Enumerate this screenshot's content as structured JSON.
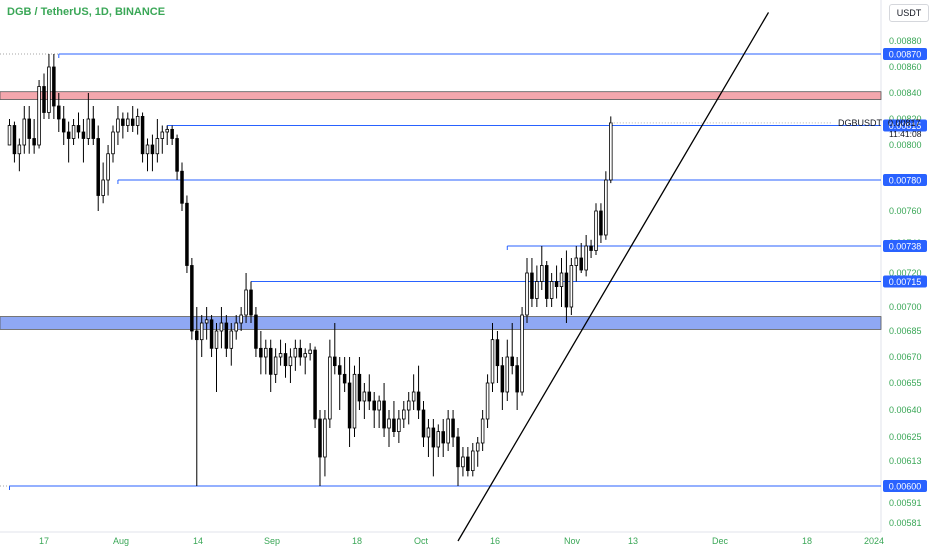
{
  "header": {
    "title": "DGB / TetherUS, 1D, BINANCE",
    "currency": "USDT"
  },
  "colors": {
    "up_candle_fill": "#ffffff",
    "down_candle_fill": "#000000",
    "level_line": "#2962ff",
    "label_bg": "#2962ff",
    "label_text": "#ffffff",
    "axis_text": "#3aa757",
    "red_zone": "#f4a7ad",
    "blue_zone": "#8fa8f4",
    "trendline": "#000000"
  },
  "chart_data": {
    "type": "candlestick",
    "title": "DGB / TetherUS, 1D, BINANCE",
    "symbol": "DGBUSDT",
    "last_price": "0.00817",
    "countdown": "11:41:08",
    "y_ticks": [
      "0.00880",
      "0.00860",
      "0.00840",
      "0.00820",
      "0.00800",
      "0.00780",
      "0.00760",
      "0.00740",
      "0.00720",
      "0.00700",
      "0.00685",
      "0.00670",
      "0.00655",
      "0.00640",
      "0.00625",
      "0.00613",
      "0.00600",
      "0.00591",
      "0.00581"
    ],
    "x_ticks": [
      "17",
      "Aug",
      "14",
      "Sep",
      "18",
      "Oct",
      "16",
      "Nov",
      "13",
      "Dec",
      "18",
      "2024"
    ],
    "price_labels": [
      "0.00870",
      "0.00815",
      "0.00780",
      "0.00738",
      "0.00715",
      "0.00600"
    ],
    "horizontal_levels": [
      {
        "price": 0.0087,
        "from_date": "Jul 20",
        "color": "#2962ff"
      },
      {
        "price": 0.00815,
        "from_date": "Aug 11",
        "color": "#2962ff"
      },
      {
        "price": 0.0078,
        "from_date": "Aug 1",
        "color": "#2962ff"
      },
      {
        "price": 0.00738,
        "from_date": "Oct 19",
        "color": "#2962ff"
      },
      {
        "price": 0.00715,
        "from_date": "Aug 28",
        "color": "#2962ff"
      },
      {
        "price": 0.006,
        "from_date": "Jul 10",
        "color": "#2962ff"
      }
    ],
    "zones": [
      {
        "from": 0.00835,
        "to": 0.00841,
        "color": "#f4a7ad"
      },
      {
        "from": 0.00686,
        "to": 0.00694,
        "color": "#8fa8f4"
      }
    ],
    "trendline": {
      "from": [
        "Oct 9",
        0.00572
      ],
      "to": [
        "Dec 11",
        0.00902
      ]
    },
    "candles": [
      [
        "Jul 10",
        0.008,
        0.0082,
        0.008,
        0.00815
      ],
      [
        "Jul 11",
        0.00815,
        0.00818,
        0.0079,
        0.00795
      ],
      [
        "Jul 12",
        0.00795,
        0.00805,
        0.00785,
        0.008
      ],
      [
        "Jul 13",
        0.008,
        0.0083,
        0.00795,
        0.0082
      ],
      [
        "Jul 14",
        0.0082,
        0.0083,
        0.00795,
        0.00805
      ],
      [
        "Jul 15",
        0.00805,
        0.0082,
        0.00795,
        0.008
      ],
      [
        "Jul 16",
        0.008,
        0.0085,
        0.00798,
        0.00845
      ],
      [
        "Jul 17",
        0.00845,
        0.00855,
        0.0082,
        0.00825
      ],
      [
        "Jul 18",
        0.00825,
        0.0087,
        0.0082,
        0.0086
      ],
      [
        "Jul 19",
        0.0086,
        0.0087,
        0.0082,
        0.0083
      ],
      [
        "Jul 20",
        0.0083,
        0.0084,
        0.0081,
        0.0082
      ],
      [
        "Jul 21",
        0.0082,
        0.0083,
        0.008,
        0.0081
      ],
      [
        "Jul 22",
        0.0081,
        0.00818,
        0.0079,
        0.00805
      ],
      [
        "Jul 23",
        0.00805,
        0.0082,
        0.008,
        0.00815
      ],
      [
        "Jul 24",
        0.00815,
        0.00825,
        0.00805,
        0.0081
      ],
      [
        "Jul 25",
        0.0081,
        0.0082,
        0.0079,
        0.00805
      ],
      [
        "Jul 26",
        0.00805,
        0.0084,
        0.008,
        0.0082
      ],
      [
        "Jul 27",
        0.0082,
        0.0083,
        0.008,
        0.00805
      ],
      [
        "Jul 28",
        0.00805,
        0.00815,
        0.0076,
        0.0077
      ],
      [
        "Jul 29",
        0.0077,
        0.0079,
        0.00765,
        0.0078
      ],
      [
        "Jul 30",
        0.0078,
        0.008,
        0.0077,
        0.00795
      ],
      [
        "Jul 31",
        0.00795,
        0.00815,
        0.0079,
        0.0081
      ],
      [
        "Aug 1",
        0.0081,
        0.0083,
        0.008,
        0.0082
      ],
      [
        "Aug 2",
        0.0082,
        0.00825,
        0.00805,
        0.00815
      ],
      [
        "Aug 3",
        0.00815,
        0.00825,
        0.0081,
        0.0082
      ],
      [
        "Aug 4",
        0.0082,
        0.0083,
        0.0081,
        0.00815
      ],
      [
        "Aug 5",
        0.00815,
        0.00828,
        0.00808,
        0.00822
      ],
      [
        "Aug 6",
        0.00822,
        0.00825,
        0.0079,
        0.00795
      ],
      [
        "Aug 7",
        0.00795,
        0.00805,
        0.00785,
        0.008
      ],
      [
        "Aug 8",
        0.008,
        0.00808,
        0.00785,
        0.00795
      ],
      [
        "Aug 9",
        0.00795,
        0.0082,
        0.0079,
        0.00805
      ],
      [
        "Aug 10",
        0.00805,
        0.00815,
        0.00795,
        0.0081
      ],
      [
        "Aug 11",
        0.0081,
        0.00815,
        0.008,
        0.00812
      ],
      [
        "Aug 12",
        0.00812,
        0.00815,
        0.008,
        0.00805
      ],
      [
        "Aug 13",
        0.00805,
        0.00808,
        0.0078,
        0.00785
      ],
      [
        "Aug 14",
        0.00785,
        0.0079,
        0.0076,
        0.00765
      ],
      [
        "Aug 15",
        0.00765,
        0.0077,
        0.0072,
        0.00725
      ],
      [
        "Aug 16",
        0.00725,
        0.0073,
        0.0068,
        0.00685
      ],
      [
        "Aug 17",
        0.00685,
        0.007,
        0.006,
        0.0068
      ],
      [
        "Aug 18",
        0.0068,
        0.00695,
        0.0067,
        0.0069
      ],
      [
        "Aug 19",
        0.0069,
        0.007,
        0.0068,
        0.00692
      ],
      [
        "Aug 20",
        0.00692,
        0.00695,
        0.0067,
        0.00675
      ],
      [
        "Aug 21",
        0.00675,
        0.0069,
        0.0065,
        0.00685
      ],
      [
        "Aug 22",
        0.00685,
        0.007,
        0.00675,
        0.0069
      ],
      [
        "Aug 23",
        0.0069,
        0.00695,
        0.0067,
        0.00675
      ],
      [
        "Aug 24",
        0.00675,
        0.0069,
        0.00665,
        0.00685
      ],
      [
        "Aug 25",
        0.00685,
        0.00695,
        0.0068,
        0.0069
      ],
      [
        "Aug 26",
        0.0069,
        0.007,
        0.00685,
        0.00695
      ],
      [
        "Aug 27",
        0.00695,
        0.0072,
        0.0069,
        0.0071
      ],
      [
        "Aug 28",
        0.0071,
        0.00715,
        0.0069,
        0.00695
      ],
      [
        "Aug 29",
        0.00695,
        0.007,
        0.0067,
        0.00675
      ],
      [
        "Aug 30",
        0.00675,
        0.00685,
        0.0066,
        0.0067
      ],
      [
        "Aug 31",
        0.0067,
        0.0068,
        0.0066,
        0.00675
      ],
      [
        "Sep 1",
        0.00675,
        0.0068,
        0.0065,
        0.0066
      ],
      [
        "Sep 2",
        0.0066,
        0.00675,
        0.00655,
        0.0067
      ],
      [
        "Sep 3",
        0.0067,
        0.0068,
        0.00665,
        0.00672
      ],
      [
        "Sep 4",
        0.00672,
        0.00678,
        0.00658,
        0.00665
      ],
      [
        "Sep 5",
        0.00665,
        0.00675,
        0.00655,
        0.0067
      ],
      [
        "Sep 6",
        0.0067,
        0.0068,
        0.00662,
        0.00675
      ],
      [
        "Sep 7",
        0.00675,
        0.0068,
        0.00665,
        0.0067
      ],
      [
        "Sep 8",
        0.0067,
        0.00675,
        0.0066,
        0.00672
      ],
      [
        "Sep 9",
        0.00672,
        0.00678,
        0.00668,
        0.00674
      ],
      [
        "Sep 10",
        0.00674,
        0.00676,
        0.0063,
        0.00635
      ],
      [
        "Sep 11",
        0.00635,
        0.0064,
        0.006,
        0.00615
      ],
      [
        "Sep 12",
        0.00615,
        0.0064,
        0.00605,
        0.00635
      ],
      [
        "Sep 13",
        0.00635,
        0.0068,
        0.0063,
        0.0067
      ],
      [
        "Sep 14",
        0.0067,
        0.0069,
        0.0066,
        0.00665
      ],
      [
        "Sep 15",
        0.00665,
        0.0067,
        0.0064,
        0.0066
      ],
      [
        "Sep 16",
        0.0066,
        0.0067,
        0.0065,
        0.00655
      ],
      [
        "Sep 17",
        0.00655,
        0.0067,
        0.0062,
        0.0063
      ],
      [
        "Sep 18",
        0.0063,
        0.00665,
        0.00625,
        0.0066
      ],
      [
        "Sep 19",
        0.0066,
        0.0067,
        0.0064,
        0.00645
      ],
      [
        "Sep 20",
        0.00645,
        0.00655,
        0.00635,
        0.0065
      ],
      [
        "Sep 21",
        0.0065,
        0.0066,
        0.0064,
        0.00645
      ],
      [
        "Sep 22",
        0.00645,
        0.0065,
        0.0063,
        0.0064
      ],
      [
        "Sep 23",
        0.0064,
        0.00648,
        0.0063,
        0.00645
      ],
      [
        "Sep 24",
        0.00645,
        0.00655,
        0.00625,
        0.0063
      ],
      [
        "Sep 25",
        0.0063,
        0.0064,
        0.0062,
        0.00635
      ],
      [
        "Sep 26",
        0.00635,
        0.00645,
        0.00625,
        0.00628
      ],
      [
        "Sep 27",
        0.00628,
        0.0064,
        0.00622,
        0.00635
      ],
      [
        "Sep 28",
        0.00635,
        0.00645,
        0.0063,
        0.0064
      ],
      [
        "Sep 29",
        0.0064,
        0.0065,
        0.00632,
        0.00645
      ],
      [
        "Sep 30",
        0.00645,
        0.0066,
        0.0064,
        0.0065
      ],
      [
        "Oct 1",
        0.0065,
        0.00665,
        0.00635,
        0.0064
      ],
      [
        "Oct 2",
        0.0064,
        0.00645,
        0.0062,
        0.00625
      ],
      [
        "Oct 3",
        0.00625,
        0.00635,
        0.00615,
        0.0063
      ],
      [
        "Oct 4",
        0.0063,
        0.00635,
        0.00605,
        0.0062
      ],
      [
        "Oct 5",
        0.0062,
        0.00632,
        0.00615,
        0.00628
      ],
      [
        "Oct 6",
        0.00628,
        0.00635,
        0.00615,
        0.00622
      ],
      [
        "Oct 7",
        0.00622,
        0.0064,
        0.00618,
        0.00635
      ],
      [
        "Oct 8",
        0.00635,
        0.0064,
        0.0062,
        0.00625
      ],
      [
        "Oct 9",
        0.00625,
        0.0063,
        0.006,
        0.0061
      ],
      [
        "Oct 10",
        0.0061,
        0.0062,
        0.00605,
        0.00615
      ],
      [
        "Oct 11",
        0.00615,
        0.0062,
        0.00605,
        0.00608
      ],
      [
        "Oct 12",
        0.00608,
        0.00622,
        0.00605,
        0.00618
      ],
      [
        "Oct 13",
        0.00618,
        0.00625,
        0.0061,
        0.00622
      ],
      [
        "Oct 14",
        0.00622,
        0.0064,
        0.00618,
        0.00635
      ],
      [
        "Oct 15",
        0.00635,
        0.0066,
        0.0063,
        0.00655
      ],
      [
        "Oct 16",
        0.00655,
        0.0069,
        0.0065,
        0.0068
      ],
      [
        "Oct 17",
        0.0068,
        0.00685,
        0.00655,
        0.00665
      ],
      [
        "Oct 18",
        0.00665,
        0.0067,
        0.0064,
        0.0065
      ],
      [
        "Oct 19",
        0.0065,
        0.0068,
        0.00645,
        0.0067
      ],
      [
        "Oct 20",
        0.0067,
        0.0069,
        0.0066,
        0.00665
      ],
      [
        "Oct 21",
        0.00665,
        0.0067,
        0.0064,
        0.0065
      ],
      [
        "Oct 22",
        0.0065,
        0.007,
        0.00648,
        0.00695
      ],
      [
        "Oct 23",
        0.00695,
        0.0073,
        0.0069,
        0.0072
      ],
      [
        "Oct 24",
        0.0072,
        0.0073,
        0.007,
        0.00705
      ],
      [
        "Oct 25",
        0.00705,
        0.00725,
        0.007,
        0.00715
      ],
      [
        "Oct 26",
        0.00715,
        0.00738,
        0.0071,
        0.00725
      ],
      [
        "Oct 27",
        0.00725,
        0.00728,
        0.007,
        0.00705
      ],
      [
        "Oct 28",
        0.00705,
        0.0072,
        0.007,
        0.00715
      ],
      [
        "Oct 29",
        0.00715,
        0.00725,
        0.00705,
        0.00712
      ],
      [
        "Oct 30",
        0.00712,
        0.0073,
        0.007,
        0.0072
      ],
      [
        "Oct 31",
        0.0072,
        0.00735,
        0.0069,
        0.007
      ],
      [
        "Nov 1",
        0.007,
        0.0073,
        0.00695,
        0.00725
      ],
      [
        "Nov 2",
        0.00725,
        0.00738,
        0.00715,
        0.0073
      ],
      [
        "Nov 3",
        0.0073,
        0.0074,
        0.0072,
        0.00722
      ],
      [
        "Nov 4",
        0.00722,
        0.00745,
        0.00718,
        0.00738
      ],
      [
        "Nov 5",
        0.00738,
        0.00742,
        0.0073,
        0.00735
      ],
      [
        "Nov 6",
        0.00735,
        0.00765,
        0.00732,
        0.0076
      ],
      [
        "Nov 7",
        0.0076,
        0.00765,
        0.0074,
        0.00745
      ],
      [
        "Nov 8",
        0.00745,
        0.00785,
        0.00742,
        0.0078
      ],
      [
        "Nov 9",
        0.0078,
        0.00822,
        0.00778,
        0.00817
      ]
    ]
  }
}
